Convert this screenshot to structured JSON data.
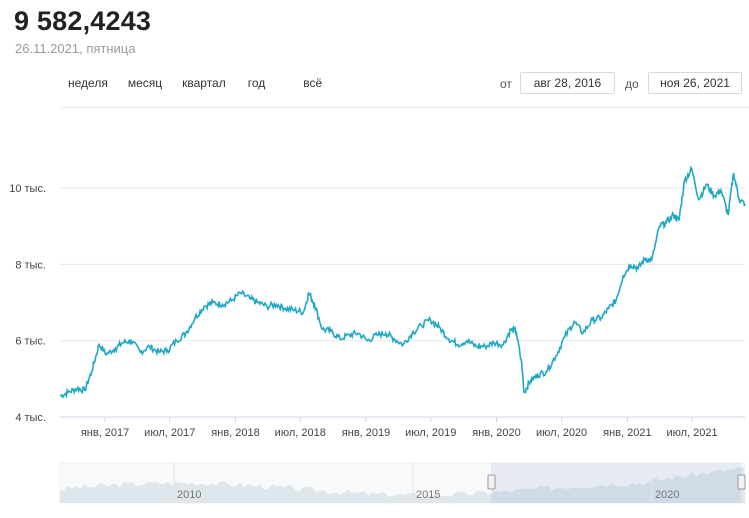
{
  "header": {
    "value": "9 582,4243",
    "date": "26.11.2021, пятница"
  },
  "period_tabs": [
    "неделя",
    "месяц",
    "квартал",
    "год",
    "всё"
  ],
  "range": {
    "from_label": "от",
    "from_value": "авг 28, 2016",
    "to_label": "до",
    "to_value": "ноя 26, 2021"
  },
  "colors": {
    "line": "#1fa8c4",
    "grid": "#e8e8e8",
    "navigator_fill": "#dfe7ec"
  },
  "chart_data": {
    "type": "line",
    "title": "",
    "xlabel": "",
    "ylabel": "",
    "ylim": [
      4000,
      11000
    ],
    "xlim": [
      "2016-08-28",
      "2021-11-26"
    ],
    "y_ticks": [
      {
        "value": 4000,
        "label": "4 тыс."
      },
      {
        "value": 6000,
        "label": "6 тыс."
      },
      {
        "value": 8000,
        "label": "8 тыс."
      },
      {
        "value": 10000,
        "label": "10 тыс."
      }
    ],
    "x_ticks": [
      {
        "date": "2017-01-01",
        "label": "янв, 2017"
      },
      {
        "date": "2017-07-01",
        "label": "июл, 2017"
      },
      {
        "date": "2018-01-01",
        "label": "янв, 2018"
      },
      {
        "date": "2018-07-01",
        "label": "июл, 2018"
      },
      {
        "date": "2019-01-01",
        "label": "янв, 2019"
      },
      {
        "date": "2019-07-01",
        "label": "июл, 2019"
      },
      {
        "date": "2020-01-01",
        "label": "янв, 2020"
      },
      {
        "date": "2020-07-01",
        "label": "июл, 2020"
      },
      {
        "date": "2021-01-01",
        "label": "янв, 2021"
      },
      {
        "date": "2021-07-01",
        "label": "июл, 2021"
      }
    ],
    "series": [
      {
        "x": [
          "2016-08-28",
          "2016-09-20",
          "2016-10-15",
          "2016-11-05",
          "2016-11-25",
          "2016-12-15",
          "2017-01-05",
          "2017-01-30",
          "2017-02-20",
          "2017-03-15",
          "2017-04-10",
          "2017-05-05",
          "2017-06-01",
          "2017-06-25",
          "2017-07-20",
          "2017-08-15",
          "2017-09-10",
          "2017-10-05",
          "2017-10-30",
          "2017-11-25",
          "2017-12-20",
          "2018-01-15",
          "2018-02-10",
          "2018-03-05",
          "2018-03-30",
          "2018-04-25",
          "2018-05-20",
          "2018-06-15",
          "2018-07-10",
          "2018-07-25",
          "2018-08-10",
          "2018-09-01",
          "2018-09-25",
          "2018-10-20",
          "2018-11-15",
          "2018-12-10",
          "2019-01-05",
          "2019-02-01",
          "2019-02-25",
          "2019-03-20",
          "2019-04-15",
          "2019-05-10",
          "2019-06-05",
          "2019-06-30",
          "2019-07-25",
          "2019-08-20",
          "2019-09-15",
          "2019-10-10",
          "2019-11-05",
          "2019-11-30",
          "2019-12-25",
          "2020-01-20",
          "2020-02-10",
          "2020-02-25",
          "2020-03-12",
          "2020-03-18",
          "2020-04-05",
          "2020-04-25",
          "2020-05-20",
          "2020-06-15",
          "2020-07-10",
          "2020-08-05",
          "2020-08-30",
          "2020-09-25",
          "2020-10-20",
          "2020-11-10",
          "2020-11-30",
          "2020-12-20",
          "2021-01-10",
          "2021-01-31",
          "2021-02-20",
          "2021-03-10",
          "2021-04-01",
          "2021-04-20",
          "2021-05-10",
          "2021-05-25",
          "2021-06-10",
          "2021-06-30",
          "2021-07-20",
          "2021-08-10",
          "2021-09-01",
          "2021-09-20",
          "2021-10-10",
          "2021-10-25",
          "2021-11-10",
          "2021-11-26"
        ],
        "values": [
          4550,
          4650,
          4750,
          4700,
          5200,
          5900,
          5650,
          5800,
          5950,
          6000,
          5700,
          5850,
          5700,
          5750,
          6000,
          6200,
          6600,
          6900,
          7000,
          6950,
          7050,
          7250,
          7100,
          7000,
          6900,
          6950,
          6850,
          6800,
          6750,
          7250,
          6950,
          6300,
          6250,
          6050,
          6150,
          6200,
          6000,
          6150,
          6200,
          6050,
          5900,
          6200,
          6400,
          6550,
          6350,
          6050,
          5900,
          6000,
          5850,
          5850,
          5950,
          5900,
          6300,
          6250,
          5350,
          4650,
          4950,
          5100,
          5200,
          5600,
          6100,
          6500,
          6200,
          6550,
          6600,
          6850,
          7050,
          7700,
          8000,
          7900,
          8150,
          8100,
          9000,
          9100,
          9300,
          9150,
          10200,
          10500,
          9700,
          10100,
          9800,
          9950,
          9300,
          10400,
          9700,
          9582
        ]
      }
    ]
  },
  "navigator": {
    "year_labels": [
      "2010",
      "2015",
      "2020"
    ]
  }
}
